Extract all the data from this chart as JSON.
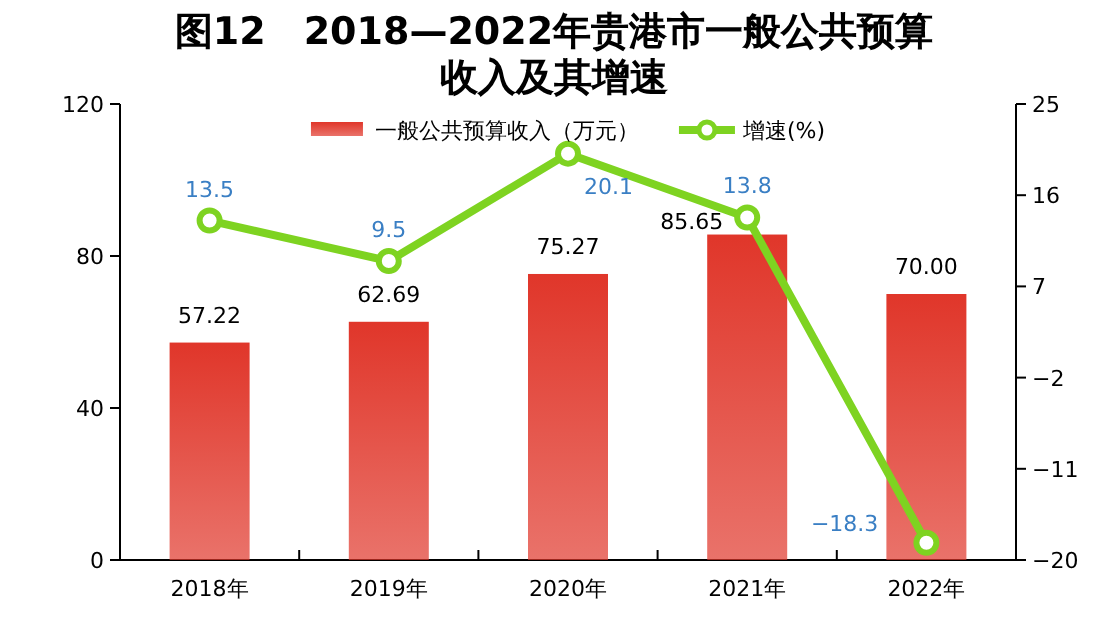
{
  "chart_data": {
    "type": "bar",
    "title": "图12　2018—2022年贵港市一般公共预算收入及其增速",
    "categories": [
      "2018年",
      "2019年",
      "2020年",
      "2021年",
      "2022年"
    ],
    "series": [
      {
        "name": "一般公共预算收入（万元）",
        "color": "#e0362a",
        "values": [
          57.22,
          62.69,
          75.27,
          85.65,
          70.0
        ],
        "value_labels": [
          "57.22",
          "62.69",
          "75.27",
          "85.65",
          "70.00"
        ]
      },
      {
        "name": "增速(%)",
        "type": "line",
        "axis": "y2",
        "color": "#7ed321",
        "marker": "circle",
        "values": [
          13.5,
          9.5,
          20.1,
          13.8,
          -18.3
        ],
        "value_labels": [
          "13.5",
          "9.5",
          "20.1",
          "13.8",
          "−18.3"
        ]
      }
    ],
    "ylim": [
      0,
      120
    ],
    "yticks": [
      0,
      40,
      80,
      120
    ],
    "y2lim": [
      -20,
      25
    ],
    "y2ticks": [
      {
        "value": -20,
        "label": "−20"
      },
      {
        "value": -11,
        "label": "−11"
      },
      {
        "value": -2,
        "label": "−2"
      },
      7,
      16,
      25
    ],
    "legend": "top",
    "grid": false
  }
}
